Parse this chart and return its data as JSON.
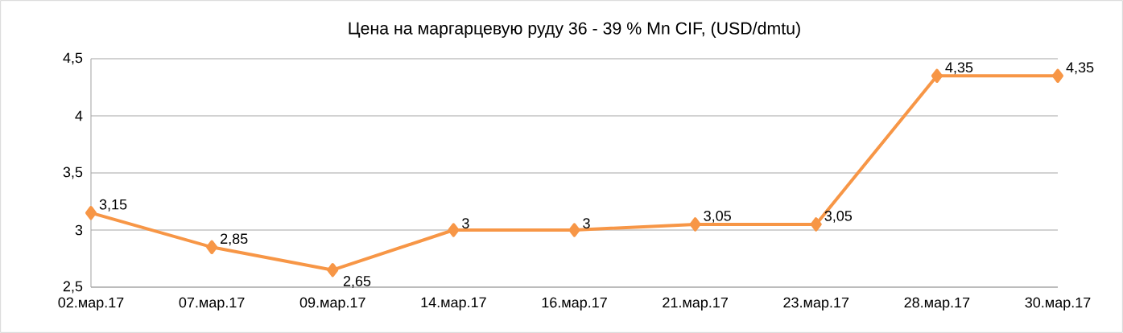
{
  "chart_data": {
    "type": "line",
    "title": "Цена на маргарцевую руду 36 - 39 % Mn CIF, (USD/dmtu)",
    "categories": [
      "02.мар.17",
      "07.мар.17",
      "09.мар.17",
      "14.мар.17",
      "16.мар.17",
      "21.мар.17",
      "23.мар.17",
      "28.мар.17",
      "30.мар.17"
    ],
    "series": [
      {
        "color": "#f79646",
        "values": [
          3.15,
          2.85,
          2.65,
          3,
          3,
          3.05,
          3.05,
          4.35,
          4.35
        ],
        "value_labels": [
          "3,15",
          "2,85",
          "2,65",
          "3",
          "3",
          "3,05",
          "3,05",
          "4,35",
          "4,35"
        ]
      }
    ],
    "ylim": [
      2.5,
      4.5
    ],
    "yticks": [
      {
        "value": 2.5,
        "label": "2,5"
      },
      {
        "value": 3,
        "label": "3"
      },
      {
        "value": 3.5,
        "label": "3,5"
      },
      {
        "value": 4,
        "label": "4"
      },
      {
        "value": 4.5,
        "label": "4,5"
      }
    ],
    "grid": "y",
    "marker": "diamond",
    "line_style": "solid"
  }
}
